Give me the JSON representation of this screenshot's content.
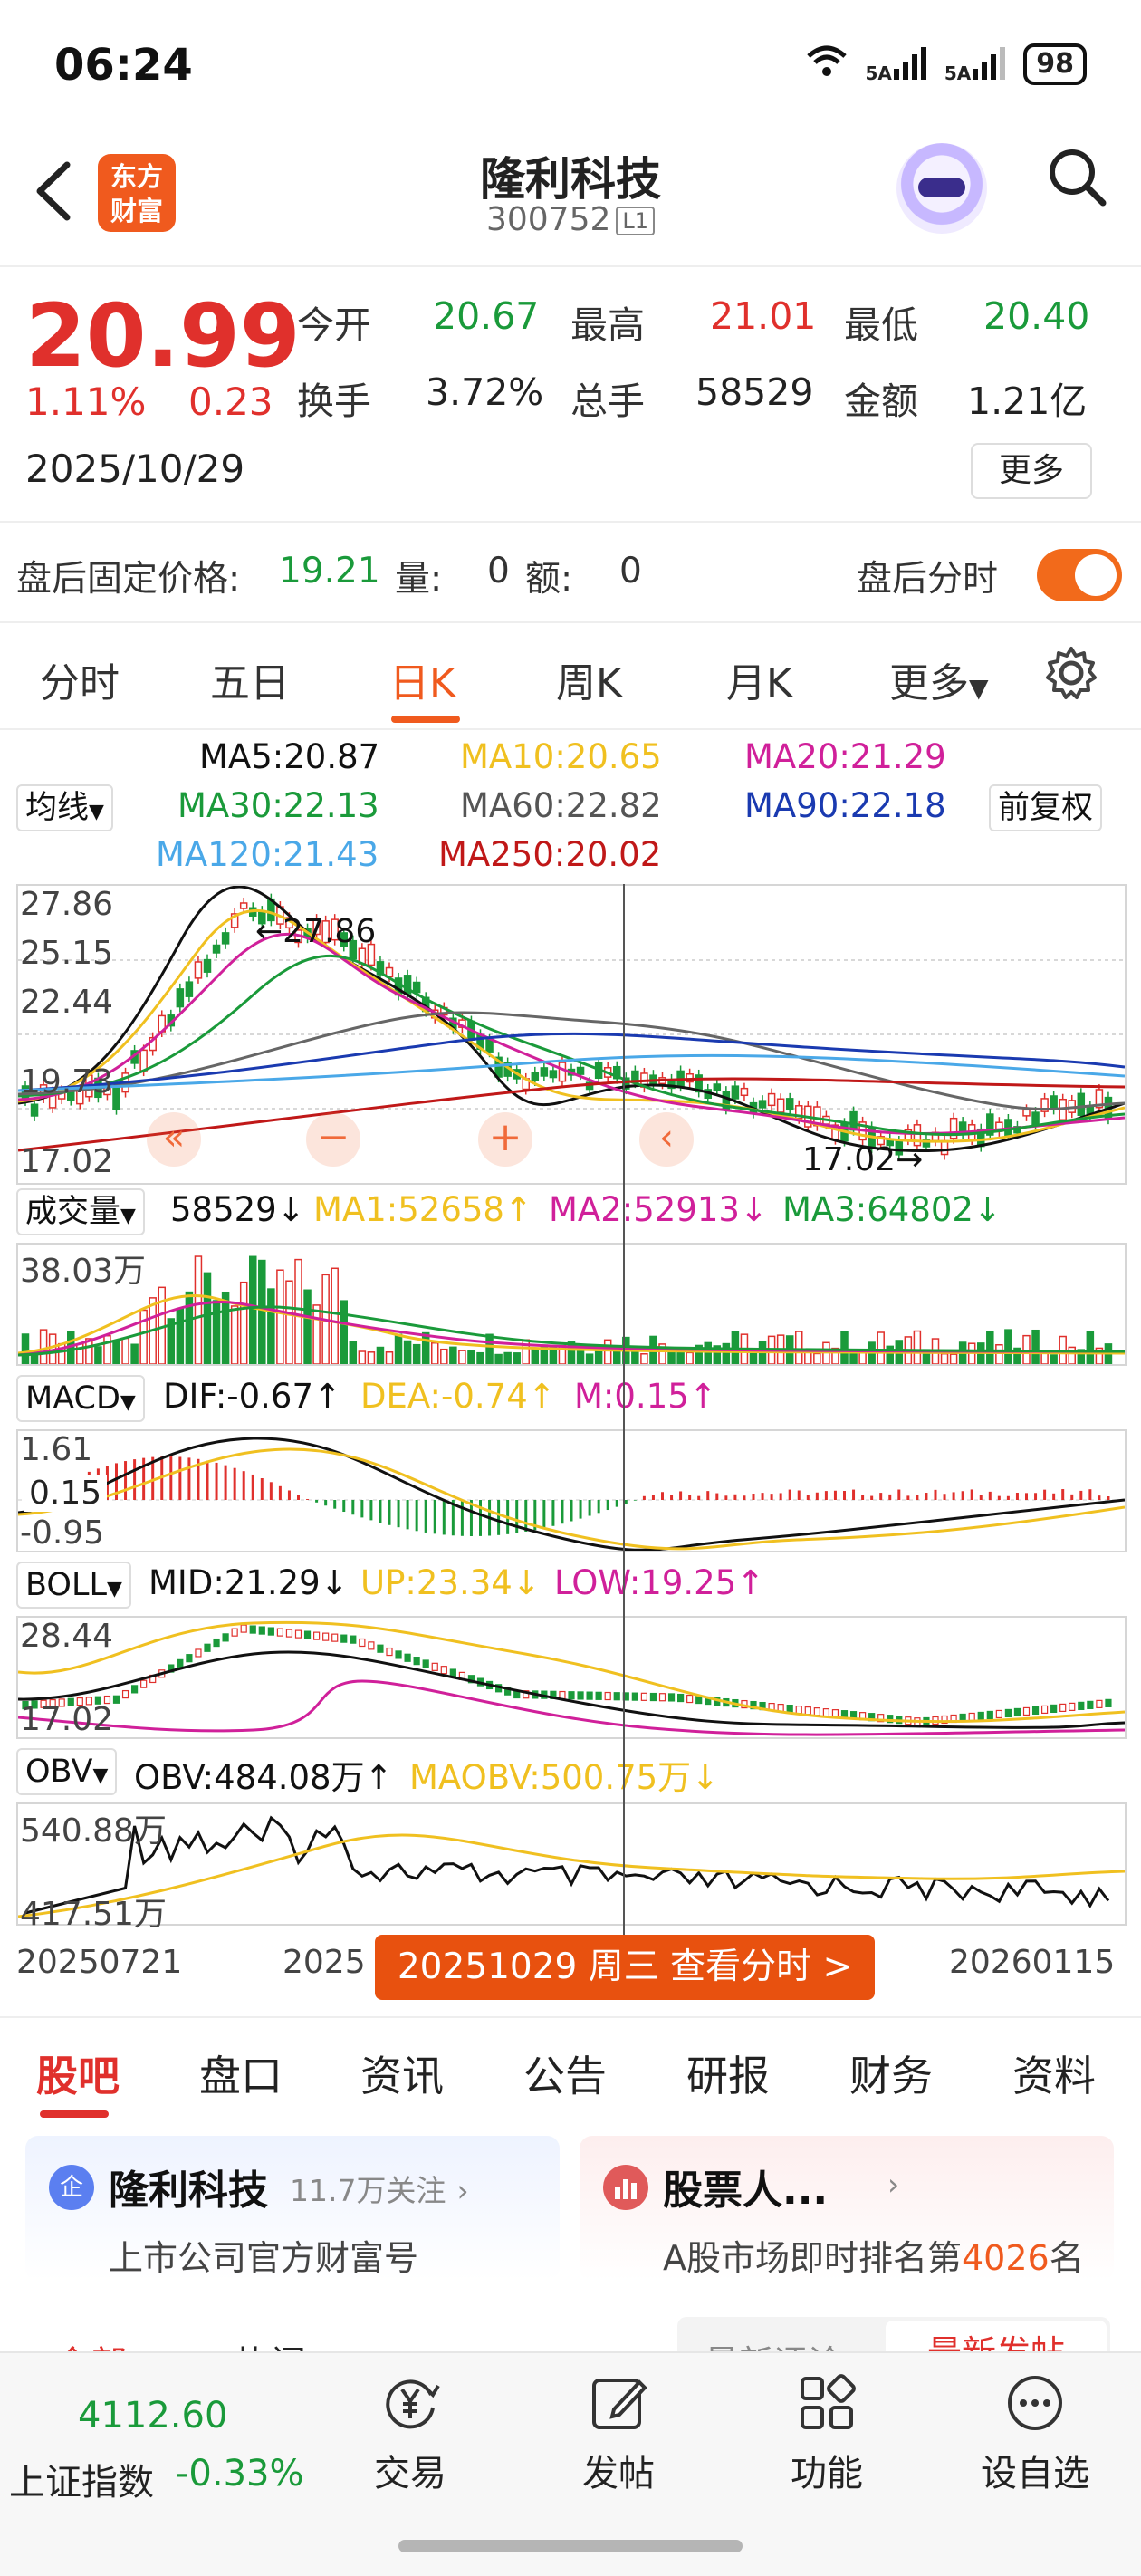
{
  "status_bar": {
    "time": "06:24",
    "net1": "5A",
    "net2": "5A",
    "battery": "98"
  },
  "header": {
    "back_icon": "chevron-left-icon",
    "logo_text_1": "东方",
    "logo_text_2": "财富",
    "title": "隆利科技",
    "code": "300752",
    "level": "L1"
  },
  "quote": {
    "price": "20.99",
    "change_pct": "1.11%",
    "change": "0.23",
    "date": "2025/10/29",
    "labels": {
      "open": "今开",
      "high": "最高",
      "low": "最低",
      "turnover": "换手",
      "volume": "总手",
      "amount": "金额"
    },
    "values": {
      "open": "20.67",
      "high": "21.01",
      "low": "20.40",
      "turnover": "3.72%",
      "volume": "58529",
      "amount": "1.21亿"
    },
    "more": "更多"
  },
  "after_hours": {
    "label": "盘后固定价格:",
    "price": "19.21",
    "vol_label": "量:",
    "vol": "0",
    "amt_label": "额:",
    "amt": "0",
    "toggle_label": "盘后分时",
    "toggle_on": true
  },
  "tabs": [
    "分时",
    "五日",
    "日K",
    "周K",
    "月K",
    "更多"
  ],
  "active_tab": "日K",
  "ma": {
    "selector": "均线",
    "adjust": "前复权",
    "ma5": "MA5:20.87",
    "ma10": "MA10:20.65",
    "ma20": "MA20:21.29",
    "ma30": "MA30:22.13",
    "ma60": "MA60:22.82",
    "ma90": "MA90:22.18",
    "ma120": "MA120:21.43",
    "ma250": "MA250:20.02"
  },
  "kline": {
    "y_labels": [
      "27.86",
      "25.15",
      "22.44",
      "19.73",
      "17.02"
    ],
    "high_mark": "27.86",
    "low_mark": "17.02"
  },
  "volume": {
    "selector": "成交量",
    "vol": "58529",
    "ma1": "MA1:52658",
    "ma2": "MA2:52913",
    "ma3": "MA3:64802",
    "y_top": "38.03万"
  },
  "macd": {
    "selector": "MACD",
    "dif": "DIF:-0.67",
    "dea": "DEA:-0.74",
    "m": "M:0.15",
    "y_top": "1.61",
    "y_bottom": "-0.95",
    "cursor_value": "0.15"
  },
  "boll": {
    "selector": "BOLL",
    "mid": "MID:21.29",
    "up": "UP:23.34",
    "low": "LOW:19.25",
    "y_top": "28.44",
    "y_bottom": "17.02"
  },
  "obv": {
    "selector": "OBV",
    "obv": "OBV:484.08万",
    "maobv": "MAOBV:500.75万",
    "y_top": "540.88万",
    "y_bottom": "417.51万"
  },
  "x_axis": {
    "start": "20250721",
    "mid": "2025",
    "end": "20260115"
  },
  "cursor_button": "20251029 周三 查看分时 >",
  "colors": {
    "up": "#e0302c",
    "down": "#1a9a3a",
    "accent": "#f05a1e",
    "ma5": "#111111",
    "ma10": "#f0c020",
    "ma20": "#d0209a",
    "ma30": "#1a9a3a",
    "ma60": "#666666",
    "ma90": "#1a3ab0",
    "ma120": "#4aa8e8",
    "ma250": "#c01818"
  },
  "bottom_tabs": [
    "股吧",
    "盘口",
    "资讯",
    "公告",
    "研报",
    "财务",
    "资料"
  ],
  "active_bottom_tab": "股吧",
  "cards": [
    {
      "badge": "企",
      "name": "隆利科技",
      "follow": "11.7万关注",
      "sub": "上市公司官方财富号"
    },
    {
      "name": "股票人...",
      "sub_prefix": "A股市场即时排名第",
      "sub_rank": "4026",
      "sub_suffix": "名"
    }
  ],
  "peek": {
    "left1": "全部",
    "left2": "热门",
    "sort1": "最新评论",
    "sort2": "最新发帖"
  },
  "bottom_bar": {
    "index_value": "4112.60",
    "index_name": "上证指数",
    "index_change": "-0.33%",
    "items": [
      "交易",
      "发帖",
      "功能",
      "设自选"
    ]
  }
}
